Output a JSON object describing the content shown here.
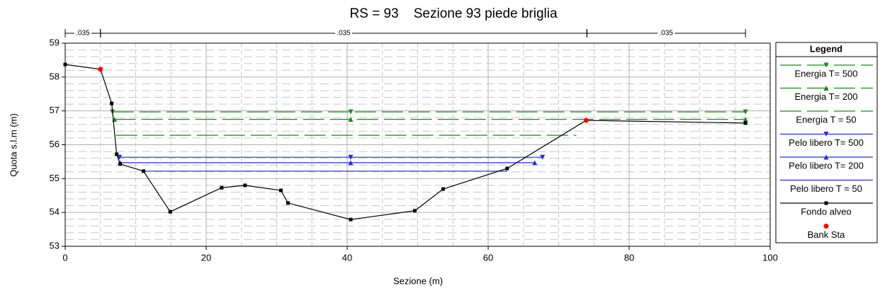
{
  "chart_data": {
    "type": "line",
    "title": "RS = 93    Sezione 93 piede briglia",
    "xlabel": "Sezione (m)",
    "ylabel": "Quota s.l.m (m)",
    "xlim": [
      0,
      100
    ],
    "ylim": [
      53,
      59
    ],
    "xticks": [
      0,
      20,
      40,
      60,
      80,
      100
    ],
    "yticks": [
      53,
      54,
      55,
      56,
      57,
      58,
      59
    ],
    "grid": true,
    "legend_title": "Legend",
    "legend": "right",
    "roughness": [
      {
        "label": ".035",
        "from": 0,
        "to": 5
      },
      {
        "label": ".035",
        "from": 5,
        "to": 74
      },
      {
        "label": ".035",
        "from": 74,
        "to": 96.5
      }
    ],
    "series": [
      {
        "name": "Energia T= 500",
        "color": "#1a8a1a",
        "style": "dashed",
        "marker": "triangle-down",
        "x": [
          6.7,
          40.5,
          96.5
        ],
        "values": [
          56.97,
          56.97,
          56.97
        ]
      },
      {
        "name": "Energia T= 200",
        "color": "#1a8a1a",
        "style": "dashed",
        "marker": "triangle-up",
        "x": [
          7.0,
          40.5,
          96.5
        ],
        "values": [
          56.75,
          56.75,
          56.75
        ]
      },
      {
        "name": "Energia T = 50",
        "color": "#1a8a1a",
        "style": "dashed",
        "marker": "none",
        "x": [
          7.2,
          72.5
        ],
        "values": [
          56.28,
          56.28
        ]
      },
      {
        "name": "Pelo libero T= 500",
        "color": "#2a2ae0",
        "style": "solid",
        "marker": "triangle-down",
        "x": [
          7.7,
          40.5,
          67.7
        ],
        "values": [
          55.63,
          55.63,
          55.63
        ]
      },
      {
        "name": "Pelo libero T= 200",
        "color": "#2a2ae0",
        "style": "solid",
        "marker": "triangle-up",
        "x": [
          7.8,
          40.5,
          66.6
        ],
        "values": [
          55.47,
          55.47,
          55.47
        ]
      },
      {
        "name": "Pelo libero T = 50",
        "color": "#2a2ae0",
        "style": "solid",
        "marker": "none",
        "x": [
          11.0,
          62.7
        ],
        "values": [
          55.22,
          55.22
        ]
      },
      {
        "name": "Fondo alveo",
        "color": "#000000",
        "style": "solid",
        "marker": "square",
        "x": [
          0,
          5.0,
          6.6,
          7.3,
          7.8,
          11.1,
          14.9,
          22.2,
          25.5,
          30.6,
          31.6,
          40.5,
          49.6,
          53.6,
          62.7,
          73.9,
          96.5
        ],
        "values": [
          58.37,
          58.23,
          57.22,
          55.72,
          55.43,
          55.22,
          54.02,
          54.73,
          54.8,
          54.65,
          54.28,
          53.79,
          54.05,
          54.69,
          55.3,
          56.72,
          56.64
        ]
      },
      {
        "name": "Bank Sta",
        "color": "#ff0000",
        "style": "none",
        "marker": "circle",
        "x": [
          5.0,
          73.9
        ],
        "values": [
          58.23,
          56.72
        ]
      }
    ]
  }
}
